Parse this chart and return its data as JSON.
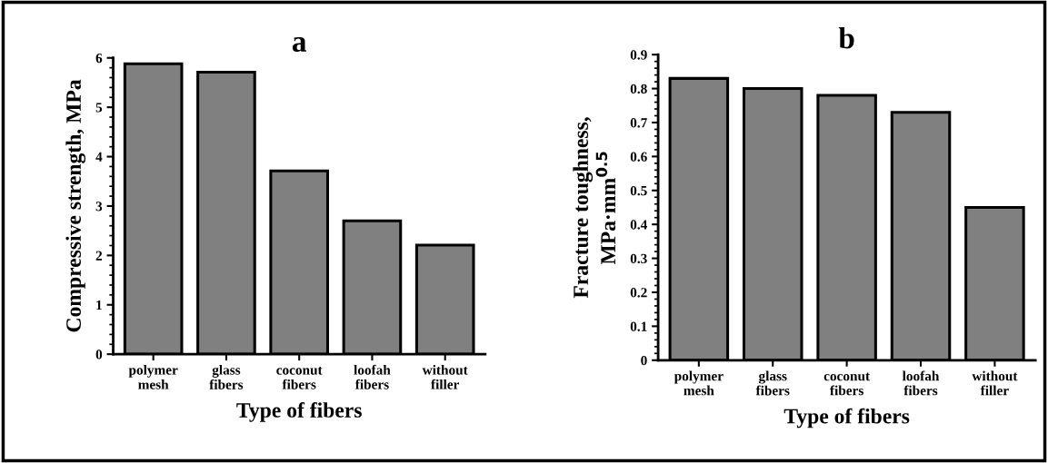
{
  "chart_data": [
    {
      "type": "bar",
      "title": "a",
      "xlabel": "Type of fibers",
      "ylabel": "Compressive strength, MPa",
      "categories": [
        "polymer\nmesh",
        "glass\nfibers",
        "coconut\nfibers",
        "loofah\nfibers",
        "without\nfiller"
      ],
      "values": [
        5.88,
        5.71,
        3.71,
        2.7,
        2.21
      ],
      "color": "#808080",
      "ylim": [
        0,
        6
      ],
      "yticks": [
        0,
        1,
        2,
        3,
        4,
        5,
        6
      ],
      "grid": false
    },
    {
      "type": "bar",
      "title": "b",
      "xlabel": "Type of fibers",
      "ylabel": "Fracture toughness,\nMPa·mm$^{0.5}$",
      "categories": [
        "polymer\nmesh",
        "glass\nfibers",
        "coconut\nfibers",
        "loofah\nfibers",
        "without\nfiller"
      ],
      "values": [
        0.83,
        0.8,
        0.78,
        0.73,
        0.45
      ],
      "color": "#808080",
      "ylim": [
        0,
        0.9
      ],
      "yticks": [
        0,
        0.1,
        0.2,
        0.3,
        0.4,
        0.5,
        0.6,
        0.7,
        0.8,
        0.9
      ],
      "grid": false
    }
  ]
}
